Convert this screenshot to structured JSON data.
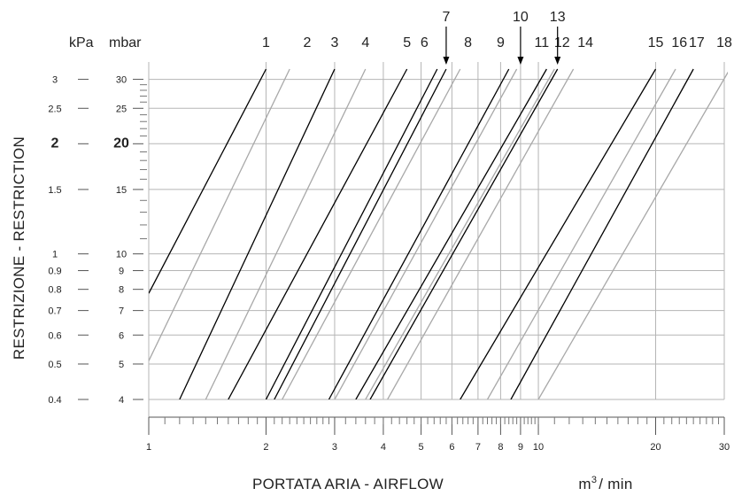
{
  "chart_data": {
    "type": "line",
    "xlabel": "PORTATA ARIA - AIRFLOW",
    "x_unit_base": "m",
    "x_unit_exp": "3",
    "x_unit_tail": "/ min",
    "ylabel": "RESTRIZIONE - RESTRICTION",
    "y_left_unit": "kPa",
    "y_right_unit": "mbar",
    "x_scale": "log",
    "y_scale": "log",
    "xlim": [
      1,
      30
    ],
    "ylim_mbar": [
      4,
      32
    ],
    "grid": true,
    "x_ticks": [
      {
        "value": 1,
        "label": "1"
      },
      {
        "value": 2,
        "label": "2"
      },
      {
        "value": 3,
        "label": "3"
      },
      {
        "value": 4,
        "label": "4"
      },
      {
        "value": 5,
        "label": "5"
      },
      {
        "value": 6,
        "label": "6"
      },
      {
        "value": 7,
        "label": "7"
      },
      {
        "value": 8,
        "label": "8"
      },
      {
        "value": 9,
        "label": "9"
      },
      {
        "value": 10,
        "label": "10"
      },
      {
        "value": 20,
        "label": "20"
      },
      {
        "value": 30,
        "label": "30"
      }
    ],
    "y_ticks": [
      {
        "mbar": 4,
        "kpa_label": "0.4",
        "mbar_label": "4"
      },
      {
        "mbar": 5,
        "kpa_label": "0.5",
        "mbar_label": "5"
      },
      {
        "mbar": 6,
        "kpa_label": "0.6",
        "mbar_label": "6"
      },
      {
        "mbar": 7,
        "kpa_label": "0.7",
        "mbar_label": "7"
      },
      {
        "mbar": 8,
        "kpa_label": "0.8",
        "mbar_label": "8"
      },
      {
        "mbar": 9,
        "kpa_label": "0.9",
        "mbar_label": "9"
      },
      {
        "mbar": 10,
        "kpa_label": "1",
        "mbar_label": "10"
      },
      {
        "mbar": 15,
        "kpa_label": "1.5",
        "mbar_label": "15"
      },
      {
        "mbar": 20,
        "kpa_label": "2",
        "mbar_label": "20",
        "bold": true
      },
      {
        "mbar": 25,
        "kpa_label": "2.5",
        "mbar_label": "25"
      },
      {
        "mbar": 30,
        "kpa_label": "3",
        "mbar_label": "30"
      }
    ],
    "series": [
      {
        "name": "1",
        "color": "#000000",
        "points": [
          [
            1.0,
            7.8
          ],
          [
            2.0,
            32.0
          ]
        ]
      },
      {
        "name": "2",
        "color": "#a8a8a8",
        "points": [
          [
            1.0,
            5.1
          ],
          [
            2.3,
            32.0
          ]
        ]
      },
      {
        "name": "3",
        "color": "#000000",
        "points": [
          [
            1.2,
            4.0
          ],
          [
            3.0,
            32.0
          ]
        ]
      },
      {
        "name": "4",
        "color": "#a8a8a8",
        "points": [
          [
            1.4,
            4.0
          ],
          [
            3.6,
            32.0
          ]
        ]
      },
      {
        "name": "5",
        "color": "#000000",
        "points": [
          [
            1.6,
            4.0
          ],
          [
            4.6,
            32.0
          ]
        ]
      },
      {
        "name": "6",
        "color": "#000000",
        "points": [
          [
            2.0,
            4.0
          ],
          [
            5.5,
            32.0
          ]
        ]
      },
      {
        "name": "7",
        "color": "#000000",
        "points": [
          [
            2.1,
            4.0
          ],
          [
            5.8,
            32.0
          ]
        ]
      },
      {
        "name": "8",
        "color": "#a8a8a8",
        "points": [
          [
            2.2,
            4.0
          ],
          [
            6.3,
            32.0
          ]
        ]
      },
      {
        "name": "9",
        "color": "#000000",
        "points": [
          [
            2.9,
            4.0
          ],
          [
            8.4,
            32.0
          ]
        ]
      },
      {
        "name": "10",
        "color": "#a8a8a8",
        "points": [
          [
            3.0,
            4.0
          ],
          [
            8.8,
            32.0
          ]
        ]
      },
      {
        "name": "11",
        "color": "#000000",
        "points": [
          [
            3.4,
            4.0
          ],
          [
            10.5,
            32.0
          ]
        ]
      },
      {
        "name": "12",
        "color": "#a8a8a8",
        "points": [
          [
            3.6,
            4.0
          ],
          [
            11.0,
            32.0
          ]
        ]
      },
      {
        "name": "13",
        "color": "#000000",
        "points": [
          [
            3.7,
            4.0
          ],
          [
            11.2,
            32.0
          ]
        ]
      },
      {
        "name": "14",
        "color": "#a8a8a8",
        "points": [
          [
            4.1,
            4.0
          ],
          [
            12.3,
            32.0
          ]
        ]
      },
      {
        "name": "15",
        "color": "#000000",
        "points": [
          [
            6.3,
            4.0
          ],
          [
            20.0,
            32.0
          ]
        ]
      },
      {
        "name": "16",
        "color": "#a8a8a8",
        "points": [
          [
            7.4,
            4.0
          ],
          [
            22.5,
            32.0
          ]
        ]
      },
      {
        "name": "17",
        "color": "#000000",
        "points": [
          [
            8.5,
            4.0
          ],
          [
            25.0,
            32.0
          ]
        ]
      },
      {
        "name": "18",
        "color": "#a8a8a8",
        "points": [
          [
            10.0,
            4.0
          ],
          [
            31.0,
            32.0
          ]
        ]
      }
    ],
    "top_labels": [
      {
        "label": "1",
        "x": 2.0,
        "row": "low"
      },
      {
        "label": "2",
        "x": 2.55,
        "row": "low"
      },
      {
        "label": "3",
        "x": 3.0,
        "row": "low"
      },
      {
        "label": "4",
        "x": 3.6,
        "row": "low"
      },
      {
        "label": "5",
        "x": 4.6,
        "row": "low"
      },
      {
        "label": "6",
        "x": 5.1,
        "row": "low"
      },
      {
        "label": "7",
        "x": 5.8,
        "row": "high",
        "arrow": true
      },
      {
        "label": "8",
        "x": 6.6,
        "row": "low"
      },
      {
        "label": "9",
        "x": 8.0,
        "row": "low"
      },
      {
        "label": "10",
        "x": 9.0,
        "row": "high",
        "arrow": true
      },
      {
        "label": "11",
        "x": 10.2,
        "row": "low"
      },
      {
        "label": "12",
        "x": 11.5,
        "row": "low"
      },
      {
        "label": "13",
        "x": 11.2,
        "row": "high",
        "arrow": true
      },
      {
        "label": "14",
        "x": 13.2,
        "row": "low"
      },
      {
        "label": "15",
        "x": 20.0,
        "row": "low"
      },
      {
        "label": "16",
        "x": 23.0,
        "row": "low"
      },
      {
        "label": "17",
        "x": 25.5,
        "row": "low"
      },
      {
        "label": "18",
        "x": 30.0,
        "row": "low"
      }
    ],
    "colors": {
      "dark": "#000000",
      "light": "#a8a8a8",
      "grid": "#b5b5b5",
      "text": "#222222"
    }
  }
}
